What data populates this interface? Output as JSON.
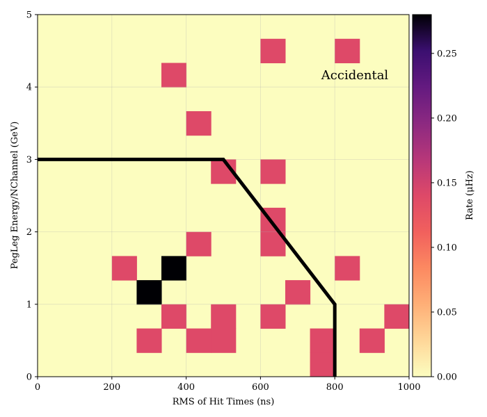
{
  "chart_data": {
    "type": "heatmap",
    "title": "",
    "annotation": "Accidental",
    "xlabel": "RMS of Hit Times (ns)",
    "ylabel": "PegLeg Energy/NChannel (GeV)",
    "xlim": [
      0,
      1000
    ],
    "ylim": [
      0,
      5
    ],
    "x_ticks": [
      "0",
      "200",
      "400",
      "600",
      "800",
      "1000"
    ],
    "y_ticks": [
      "0",
      "1",
      "2",
      "3",
      "4",
      "5"
    ],
    "grid": true,
    "x_bin_width": 66.67,
    "y_bin_height": 0.333,
    "background_value": 0.0,
    "colormap": "magma_r",
    "colorbar": {
      "label": "Rate (μHz)",
      "range": [
        0,
        0.28
      ],
      "ticks": [
        "0.00",
        "0.05",
        "0.10",
        "0.15",
        "0.20",
        "0.25"
      ]
    },
    "cells": [
      {
        "x0": 600.0,
        "y0": 4.333,
        "value": 0.14
      },
      {
        "x0": 800.0,
        "y0": 4.333,
        "value": 0.14
      },
      {
        "x0": 333.3,
        "y0": 4.0,
        "value": 0.14
      },
      {
        "x0": 400.0,
        "y0": 3.333,
        "value": 0.14
      },
      {
        "x0": 466.7,
        "y0": 2.667,
        "value": 0.14
      },
      {
        "x0": 600.0,
        "y0": 2.667,
        "value": 0.14
      },
      {
        "x0": 600.0,
        "y0": 2.0,
        "value": 0.14
      },
      {
        "x0": 400.0,
        "y0": 1.667,
        "value": 0.14
      },
      {
        "x0": 600.0,
        "y0": 1.667,
        "value": 0.14
      },
      {
        "x0": 200.0,
        "y0": 1.333,
        "value": 0.14
      },
      {
        "x0": 333.3,
        "y0": 1.333,
        "value": 0.28
      },
      {
        "x0": 800.0,
        "y0": 1.333,
        "value": 0.14
      },
      {
        "x0": 266.7,
        "y0": 1.0,
        "value": 0.28
      },
      {
        "x0": 666.7,
        "y0": 1.0,
        "value": 0.14
      },
      {
        "x0": 333.3,
        "y0": 0.667,
        "value": 0.14
      },
      {
        "x0": 466.7,
        "y0": 0.667,
        "value": 0.14
      },
      {
        "x0": 600.0,
        "y0": 0.667,
        "value": 0.14
      },
      {
        "x0": 933.3,
        "y0": 0.667,
        "value": 0.14
      },
      {
        "x0": 266.7,
        "y0": 0.333,
        "value": 0.14
      },
      {
        "x0": 400.0,
        "y0": 0.333,
        "value": 0.14
      },
      {
        "x0": 466.7,
        "y0": 0.333,
        "value": 0.14
      },
      {
        "x0": 733.3,
        "y0": 0.333,
        "value": 0.14
      },
      {
        "x0": 866.7,
        "y0": 0.333,
        "value": 0.14
      },
      {
        "x0": 733.3,
        "y0": 0.0,
        "value": 0.14
      }
    ],
    "cut_line": {
      "x": [
        0,
        500,
        800,
        800
      ],
      "y": [
        3,
        3,
        1,
        0
      ],
      "color": "#000000"
    }
  }
}
